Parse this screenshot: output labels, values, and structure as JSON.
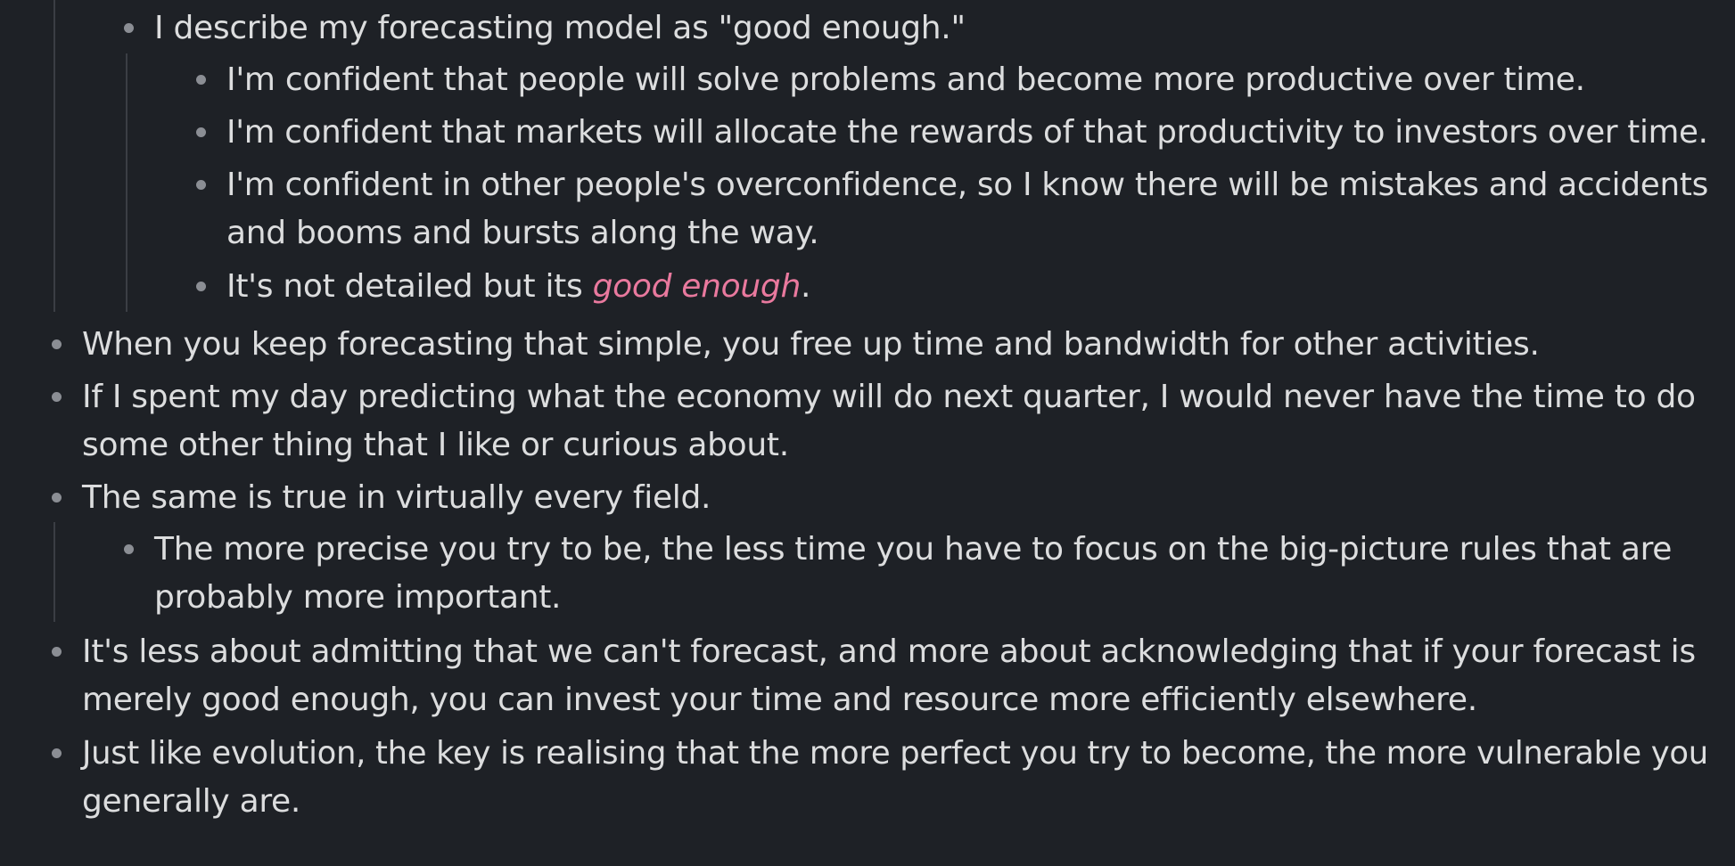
{
  "notes": {
    "item1": "I describe my forecasting model as \"good enough.\"",
    "item1a": "I'm confident that people will solve problems and become more productive over time.",
    "item1b": "I'm confident that markets will allocate the rewards of that productivity to investors over time.",
    "item1c_line1": "I'm confident in other people's overconfidence, so I know there will be mistakes and accidents",
    "item1c_line2": "and booms and bursts along the way.",
    "item1d_prefix": "It's not detailed but its ",
    "item1d_emphasis": "good enough",
    "item1d_suffix": ".",
    "item2": "When you keep forecasting that simple, you free up time and bandwidth for other activities.",
    "item3_line1": "If I spent my day predicting what the economy will do next quarter, I would never have the time to do",
    "item3_line2": "some other thing that I like or curious about.",
    "item4": "The same is true in virtually every field.",
    "item4a_line1": "The more precise you try to be, the less time you have to focus on the big-picture rules that are",
    "item4a_line2": "probably more important.",
    "item5_line1": "It's less about admitting that we can't forecast, and more about acknowledging that if your forecast is",
    "item5_line2": "merely good enough, you can invest your time and resource more efficiently elsewhere.",
    "item6_line1": "Just like evolution, the key is realising that the more perfect you try to become, the more vulnerable you",
    "item6_line2": "generally are."
  },
  "colors": {
    "background": "#1e2126",
    "text": "#dcddde",
    "bullet": "#8b8e94",
    "guide": "#3b3e44",
    "emphasis": "#e9799e"
  }
}
